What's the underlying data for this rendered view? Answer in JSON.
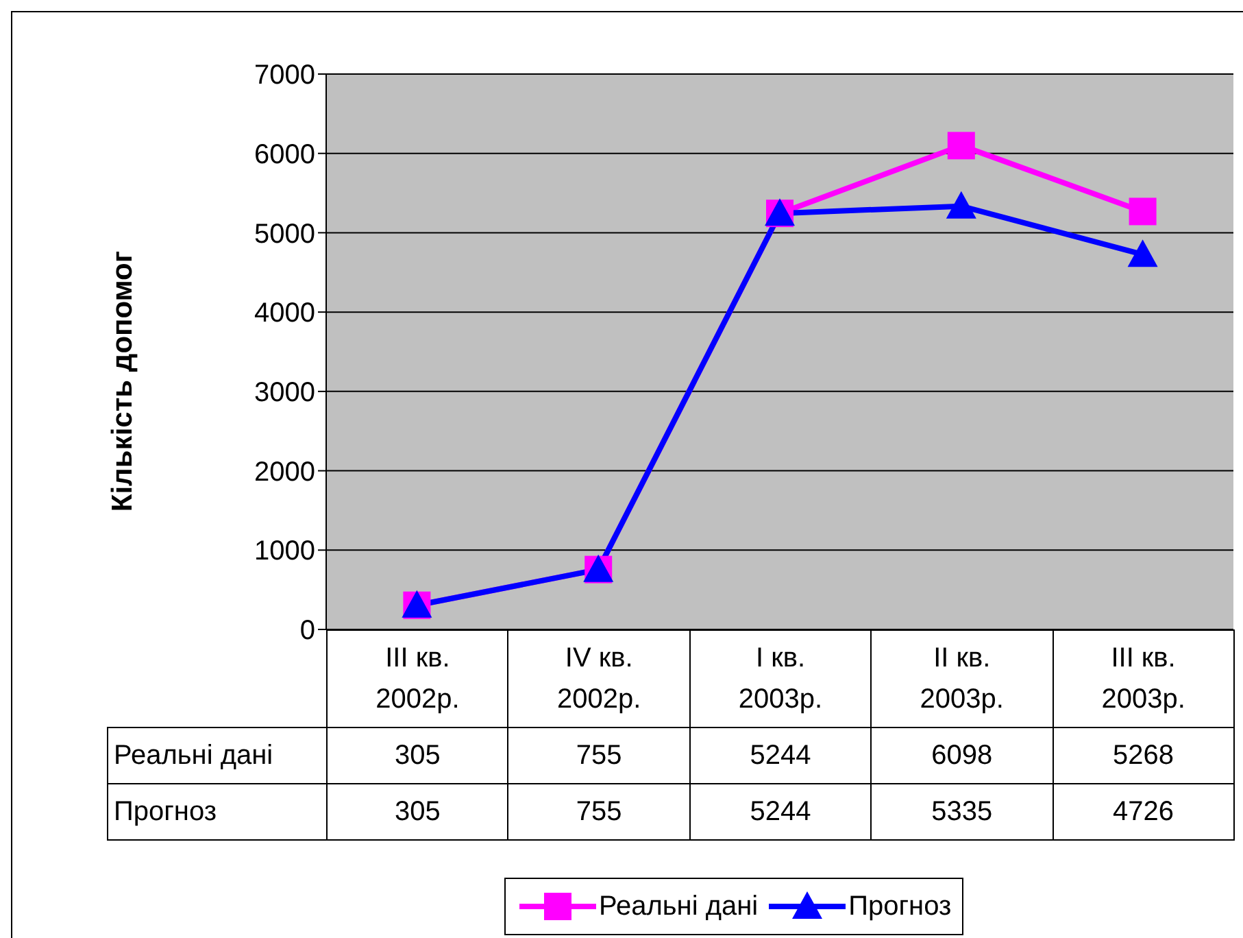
{
  "chart_data": {
    "type": "line",
    "ylabel": "Кількість допомог",
    "categories": [
      "III кв.\n2002р.",
      "IV кв.\n2002р.",
      "I кв.\n2003р.",
      "II кв.\n2003р.",
      "III кв.\n2003р."
    ],
    "series": [
      {
        "name": "Реальні дані",
        "color": "#ff00ff",
        "marker": "square",
        "values": [
          305,
          755,
          5244,
          6098,
          5268
        ]
      },
      {
        "name": "Прогноз",
        "color": "#0000ff",
        "marker": "triangle",
        "values": [
          305,
          755,
          5244,
          5335,
          4726
        ]
      }
    ],
    "ylim": [
      0,
      7000
    ],
    "yticks": [
      0,
      1000,
      2000,
      3000,
      4000,
      5000,
      6000,
      7000
    ],
    "grid": "y",
    "legend": "bottom",
    "data_labels": true
  }
}
